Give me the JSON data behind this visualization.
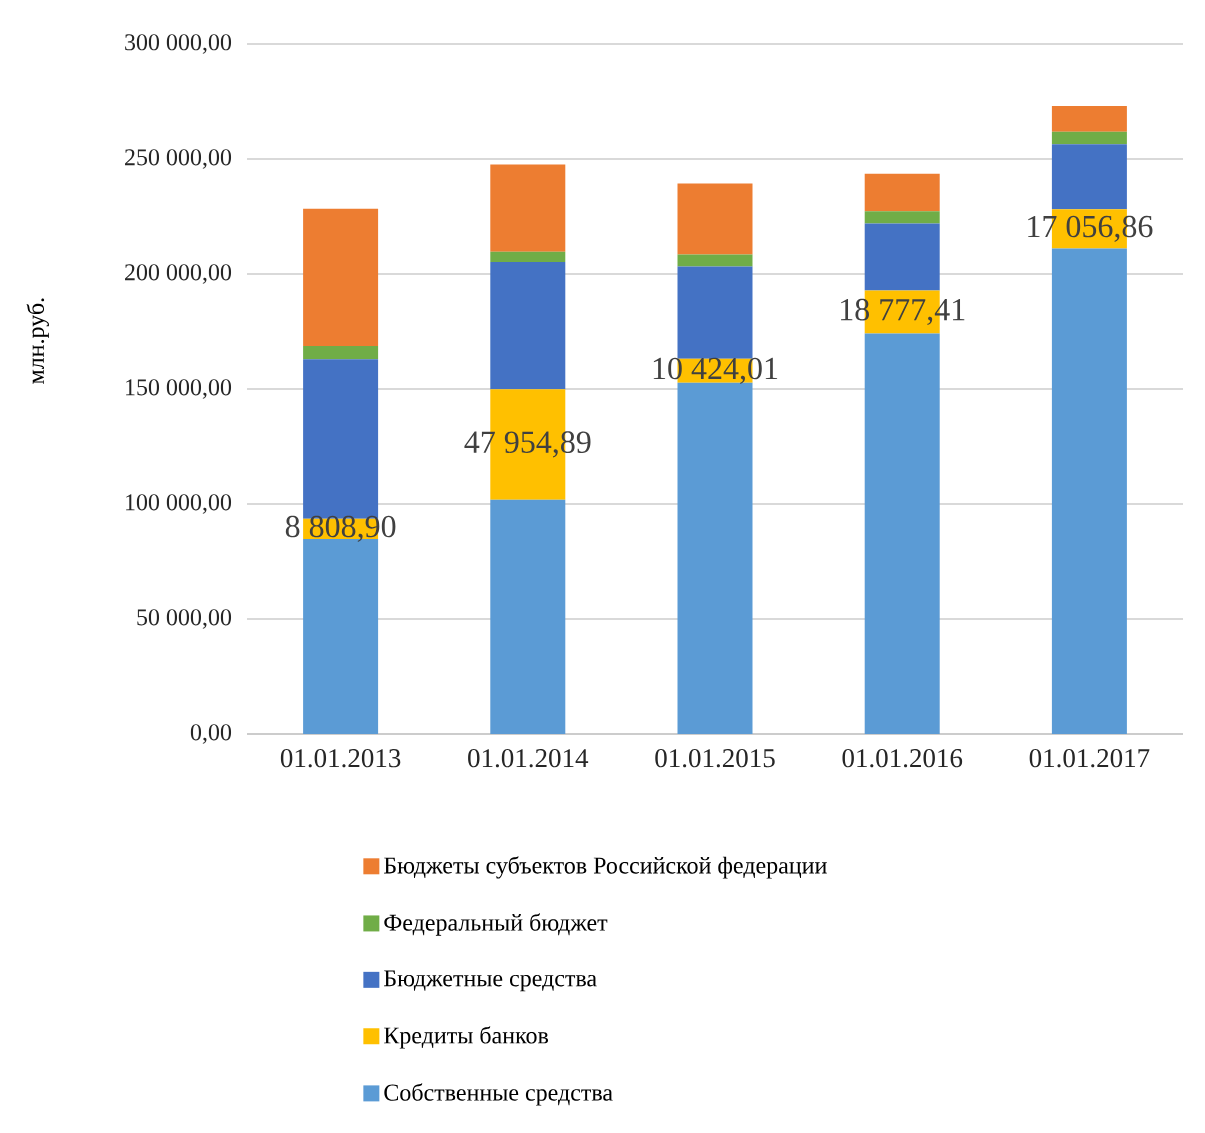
{
  "chart_data": {
    "type": "bar",
    "stacked": true,
    "ylabel": "млн.руб.",
    "categories": [
      "01.01.2013",
      "01.01.2014",
      "01.01.2015",
      "01.01.2016",
      "01.01.2017"
    ],
    "series": [
      {
        "name": "Собственные средства",
        "color": "#5b9bd5",
        "values": [
          84800,
          101900,
          152700,
          174100,
          211100
        ]
      },
      {
        "name": "Кредиты банков",
        "color": "#ffc000",
        "values": [
          8808.9,
          47954.89,
          10424.01,
          18777.41,
          17056.86
        ],
        "value_labels": [
          "8 808,90",
          "47 954,89",
          "10 424,01",
          "18 777,41",
          "17 056,86"
        ]
      },
      {
        "name": "Бюджетные средства",
        "color": "#4472c4",
        "values": [
          69300,
          55400,
          40100,
          29100,
          28300
        ]
      },
      {
        "name": "Федеральный бюджет",
        "color": "#70ad47",
        "values": [
          5800,
          4400,
          5200,
          5300,
          5400
        ]
      },
      {
        "name": "Бюджеты субъектов Российской федерации",
        "color": "#ed7d31",
        "values": [
          59700,
          38000,
          30900,
          16300,
          11200
        ]
      }
    ],
    "ylim": [
      0,
      300000
    ],
    "yticks": [
      {
        "value": 0,
        "label": "0,00"
      },
      {
        "value": 50000,
        "label": "50 000,00"
      },
      {
        "value": 100000,
        "label": "100 000,00"
      },
      {
        "value": 150000,
        "label": "150 000,00"
      },
      {
        "value": 200000,
        "label": "200 000,00"
      },
      {
        "value": 250000,
        "label": "250 000,00"
      },
      {
        "value": 300000,
        "label": "300 000,00"
      }
    ],
    "grid": "y",
    "legend": "bottom"
  }
}
